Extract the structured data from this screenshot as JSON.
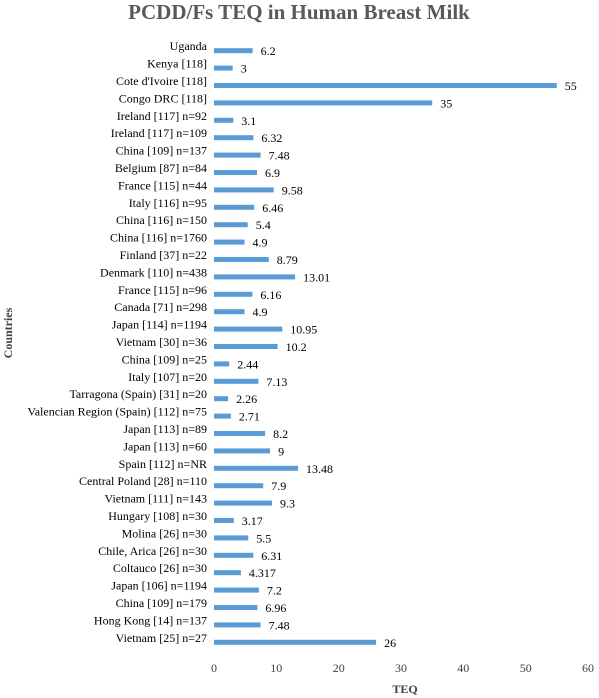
{
  "chart_data": {
    "type": "bar",
    "orientation": "horizontal",
    "title": "PCDD/Fs TEQ in Human Breast Milk",
    "xlabel": "TEQ",
    "ylabel": "Countries",
    "xlim": [
      0,
      60
    ],
    "xticks": [
      0,
      10,
      20,
      30,
      40,
      50,
      60
    ],
    "grid": false,
    "legend": "none",
    "bar_color": "#5b9bd5",
    "categories": [
      "Uganda",
      "Kenya [118]",
      "Cote d'Ivoire [118]",
      "Congo DRC [118]",
      "Ireland [117] n=92",
      "Ireland [117] n=109",
      "China [109] n=137",
      "Belgium [87] n=84",
      "France [115] n=44",
      "Italy [116] n=95",
      "China [116] n=150",
      "China [116] n=1760",
      "Finland [37] n=22",
      "Denmark [110] n=438",
      "France [115] n=96",
      "Canada [71] n=298",
      "Japan [114] n=1194",
      "Vietnam [30] n=36",
      "China [109] n=25",
      "Italy [107] n=20",
      "Tarragona (Spain) [31] n=20",
      "Valencian Region (Spain) [112] n=75",
      "Japan [113] n=89",
      "Japan [113] n=60",
      "Spain [112] n=NR",
      "Central Poland [28] n=110",
      "Vietnam [111] n=143",
      "Hungary [108] n=30",
      "Molina [26] n=30",
      "Chile, Arica [26] n=30",
      "Coltauco [26] n=30",
      "Japan [106] n=1194",
      "China [109] n=179",
      "Hong Kong [14] n=137",
      "Vietnam [25] n=27"
    ],
    "values": [
      6.2,
      3,
      55,
      35,
      3.1,
      6.32,
      7.48,
      6.9,
      9.58,
      6.46,
      5.4,
      4.9,
      8.79,
      13.01,
      6.16,
      4.9,
      10.95,
      10.2,
      2.44,
      7.13,
      2.26,
      2.71,
      8.2,
      9,
      13.48,
      7.9,
      9.3,
      3.17,
      5.5,
      6.31,
      4.317,
      7.2,
      6.96,
      7.48,
      26
    ],
    "data_labels": [
      "6.2",
      "3",
      "55",
      "35",
      "3.1",
      "6.32",
      "7.48",
      "6.9",
      "9.58",
      "6.46",
      "5.4",
      "4.9",
      "8.79",
      "13.01",
      "6.16",
      "4.9",
      "10.95",
      "10.2",
      "2.44",
      "7.13",
      "2.26",
      "2.71",
      "8.2",
      "9",
      "13.48",
      "7.9",
      "9.3",
      "3.17",
      "5.5",
      "6.31",
      "4.317",
      "7.2",
      "6.96",
      "7.48",
      "26"
    ]
  }
}
